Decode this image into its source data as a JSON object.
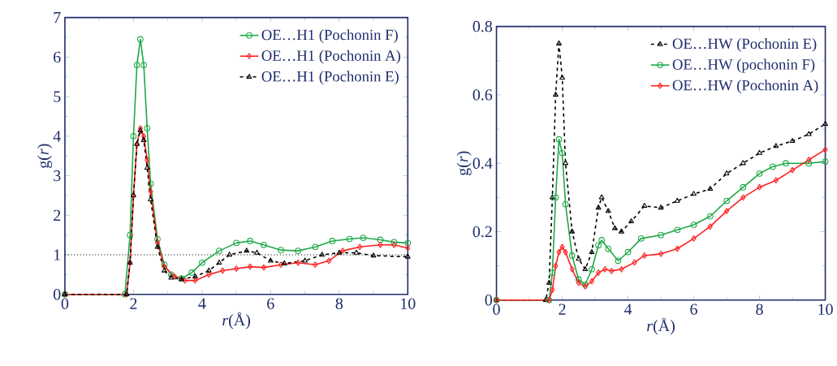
{
  "chart_data": [
    {
      "type": "line",
      "xlabel": "*r*(Å)",
      "ylabel": "g(*r*)",
      "xlim": [
        0,
        10
      ],
      "ylim": [
        0,
        7
      ],
      "xticks": [
        0,
        2,
        4,
        6,
        8,
        10
      ],
      "yticks": [
        0,
        1,
        2,
        3,
        4,
        5,
        6,
        7
      ],
      "legend": "top right",
      "ref_lines": [
        {
          "axis": "y",
          "value": 1,
          "color": "#000000",
          "line_style": "dotted"
        }
      ],
      "series": [
        {
          "name": "OE…H1 (Pochonin F)",
          "color": "#1fa847",
          "marker": "circle",
          "line_style": "solid",
          "x": [
            0,
            1.75,
            1.9,
            2.0,
            2.1,
            2.2,
            2.3,
            2.4,
            2.5,
            2.7,
            2.9,
            3.1,
            3.4,
            3.7,
            4.0,
            4.5,
            5.0,
            5.4,
            5.8,
            6.3,
            6.8,
            7.3,
            7.8,
            8.3,
            8.7,
            9.2,
            9.6,
            10
          ],
          "values": [
            0,
            0,
            1.5,
            4.0,
            5.8,
            6.45,
            5.8,
            4.2,
            2.8,
            1.4,
            0.75,
            0.5,
            0.4,
            0.55,
            0.8,
            1.1,
            1.3,
            1.35,
            1.25,
            1.12,
            1.1,
            1.2,
            1.35,
            1.4,
            1.43,
            1.38,
            1.32,
            1.3
          ]
        },
        {
          "name": "OE…H1 (Pochonin A)",
          "color": "#ff2020",
          "marker": "diamond",
          "line_style": "solid",
          "x": [
            0,
            1.8,
            1.9,
            2.0,
            2.1,
            2.2,
            2.3,
            2.4,
            2.5,
            2.7,
            2.9,
            3.2,
            3.5,
            3.8,
            4.2,
            4.6,
            5.0,
            5.4,
            5.8,
            6.3,
            6.8,
            7.3,
            7.7,
            8.1,
            8.6,
            9.2,
            9.6,
            10
          ],
          "values": [
            0,
            0,
            0.8,
            2.5,
            3.8,
            4.2,
            4.0,
            3.4,
            2.6,
            1.3,
            0.7,
            0.45,
            0.35,
            0.35,
            0.5,
            0.6,
            0.65,
            0.7,
            0.68,
            0.75,
            0.8,
            0.75,
            0.85,
            1.1,
            1.2,
            1.25,
            1.25,
            1.17
          ]
        },
        {
          "name": "OE…H1 (Pochonin E)",
          "color": "#000000",
          "marker": "triangle",
          "line_style": "dashed",
          "x": [
            0,
            1.8,
            1.9,
            2.0,
            2.1,
            2.2,
            2.3,
            2.4,
            2.5,
            2.7,
            2.9,
            3.1,
            3.4,
            3.8,
            4.2,
            4.5,
            4.8,
            5.3,
            5.6,
            6.0,
            6.4,
            7.0,
            7.5,
            8.0,
            8.5,
            9.0,
            10
          ],
          "values": [
            0,
            0,
            0.8,
            2.5,
            3.8,
            4.15,
            3.9,
            3.2,
            2.4,
            1.2,
            0.6,
            0.42,
            0.38,
            0.45,
            0.6,
            0.8,
            1.0,
            1.1,
            1.05,
            0.85,
            0.78,
            0.85,
            1.0,
            1.05,
            1.05,
            0.98,
            0.95
          ]
        }
      ]
    },
    {
      "type": "line",
      "xlabel": "*r*(Å)",
      "ylabel": "g(*r*)",
      "xlim": [
        0,
        10
      ],
      "ylim": [
        0,
        0.8
      ],
      "xticks": [
        0,
        2,
        4,
        6,
        8,
        10
      ],
      "yticks": [
        0,
        0.2,
        0.4,
        0.6,
        0.8
      ],
      "legend": "top right",
      "series": [
        {
          "name": "OE…HW (Pochonin E)",
          "color": "#000000",
          "marker": "triangle",
          "line_style": "dashed",
          "x": [
            0,
            1.5,
            1.6,
            1.7,
            1.8,
            1.9,
            2.0,
            2.1,
            2.3,
            2.5,
            2.7,
            2.9,
            3.1,
            3.2,
            3.4,
            3.6,
            3.8,
            4.1,
            4.5,
            5.0,
            5.5,
            6.0,
            6.5,
            7.0,
            7.5,
            8.0,
            8.5,
            9.0,
            9.5,
            10
          ],
          "values": [
            0,
            0,
            0.05,
            0.3,
            0.6,
            0.75,
            0.65,
            0.4,
            0.2,
            0.12,
            0.09,
            0.14,
            0.27,
            0.3,
            0.26,
            0.21,
            0.2,
            0.23,
            0.275,
            0.27,
            0.29,
            0.31,
            0.325,
            0.37,
            0.4,
            0.43,
            0.45,
            0.465,
            0.485,
            0.515
          ]
        },
        {
          "name": "OE…HW (pochonin F)",
          "color": "#1fa847",
          "marker": "circle",
          "line_style": "solid",
          "x": [
            0,
            1.6,
            1.7,
            1.8,
            1.9,
            2.0,
            2.1,
            2.3,
            2.5,
            2.7,
            2.9,
            3.1,
            3.2,
            3.4,
            3.7,
            4.0,
            4.4,
            5.0,
            5.5,
            6.0,
            6.5,
            7.0,
            7.5,
            8.0,
            8.4,
            8.8,
            9.5,
            10
          ],
          "values": [
            0,
            0,
            0.08,
            0.3,
            0.47,
            0.43,
            0.28,
            0.13,
            0.06,
            0.045,
            0.09,
            0.16,
            0.175,
            0.15,
            0.115,
            0.14,
            0.18,
            0.19,
            0.205,
            0.22,
            0.245,
            0.29,
            0.33,
            0.37,
            0.39,
            0.4,
            0.4,
            0.405
          ]
        },
        {
          "name": "OE…HW (Pochonin A)",
          "color": "#ff2020",
          "marker": "diamond",
          "line_style": "solid",
          "x": [
            0,
            1.6,
            1.7,
            1.8,
            1.9,
            2.0,
            2.1,
            2.3,
            2.5,
            2.7,
            2.9,
            3.1,
            3.3,
            3.5,
            3.8,
            4.2,
            4.5,
            5.0,
            5.5,
            6.0,
            6.5,
            7.0,
            7.5,
            8.0,
            8.5,
            9.0,
            9.5,
            10
          ],
          "values": [
            0,
            0,
            0.03,
            0.1,
            0.14,
            0.155,
            0.14,
            0.09,
            0.05,
            0.04,
            0.055,
            0.08,
            0.09,
            0.085,
            0.09,
            0.11,
            0.13,
            0.135,
            0.15,
            0.18,
            0.215,
            0.26,
            0.3,
            0.33,
            0.35,
            0.38,
            0.41,
            0.44
          ]
        }
      ]
    }
  ]
}
